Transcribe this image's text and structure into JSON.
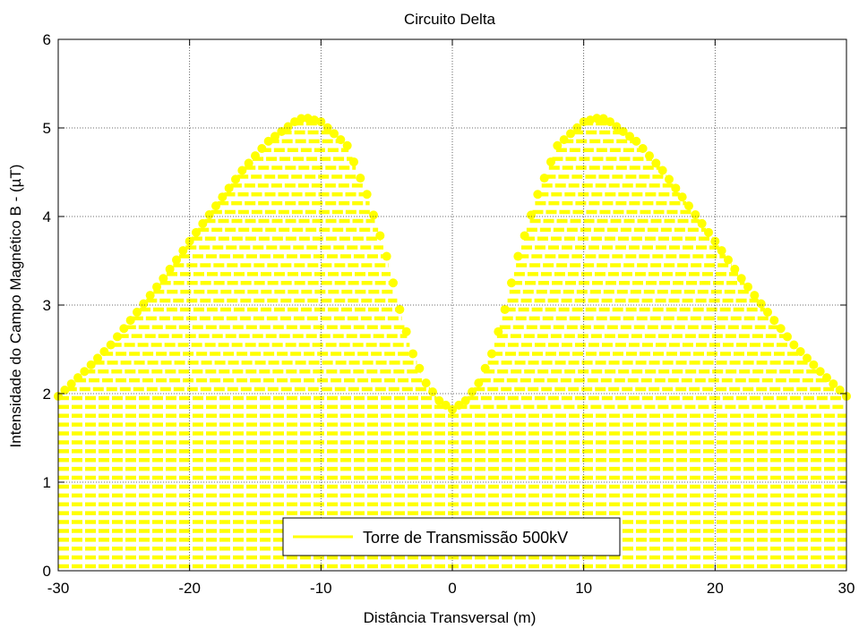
{
  "chart_data": {
    "type": "scatter",
    "title": "Circuito Delta",
    "xlabel": "Distância Transversal (m)",
    "ylabel": "Intensidade do Campo Magnético B - (µT)",
    "xlim": [
      -30,
      30
    ],
    "ylim": [
      0,
      6
    ],
    "xticks": [
      -30,
      -20,
      -10,
      0,
      10,
      20,
      30
    ],
    "yticks": [
      0,
      1,
      2,
      3,
      4,
      5,
      6
    ],
    "grid": true,
    "legend_position": "bottom-center",
    "series": [
      {
        "name": "Torre de Transmissão 500kV",
        "color": "#ffff00",
        "marker": "filled-circle",
        "fill_to_zero": true,
        "x": [
          -30,
          -28,
          -26,
          -24,
          -22,
          -20,
          -18,
          -16,
          -14,
          -12,
          -11.3,
          -10,
          -8,
          -6.5,
          -5,
          -4,
          -3,
          -2,
          -1,
          0,
          1,
          2,
          3,
          4,
          5,
          6.5,
          8,
          10,
          11.3,
          12,
          14,
          16,
          18,
          20,
          22,
          24,
          26,
          28,
          30
        ],
        "y": [
          1.97,
          2.25,
          2.55,
          2.92,
          3.3,
          3.72,
          4.12,
          4.52,
          4.85,
          5.07,
          5.12,
          5.07,
          4.8,
          4.25,
          3.55,
          2.95,
          2.45,
          2.12,
          1.92,
          1.82,
          1.92,
          2.12,
          2.45,
          2.95,
          3.55,
          4.25,
          4.8,
          5.07,
          5.12,
          5.07,
          4.85,
          4.52,
          4.12,
          3.72,
          3.3,
          2.92,
          2.55,
          2.25,
          1.97
        ]
      }
    ]
  }
}
